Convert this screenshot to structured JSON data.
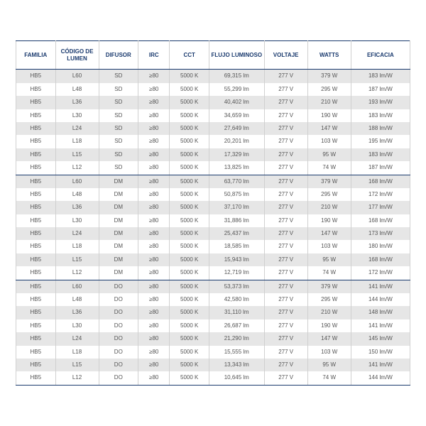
{
  "table": {
    "type": "table",
    "header_text_color": "#1a3a6e",
    "body_text_color": "#555555",
    "shade_row_color": "#e6e6e6",
    "border_color": "#d0d0d0",
    "strong_border_color": "#1a3a6e",
    "header_fontsize": 8,
    "body_fontsize": 8,
    "columns": [
      "FAMILIA",
      "CÓDIGO DE LUMEN",
      "DIFUSOR",
      "IRC",
      "CCT",
      "FLUJO LUMINOSO",
      "VOLTAJE",
      "WATTS",
      "EFICACIA"
    ],
    "rows": [
      {
        "shade": true,
        "group_end": false,
        "cells": [
          "HB5",
          "L60",
          "SD",
          "≥80",
          "5000 K",
          "69,315 lm",
          "277 V",
          "379 W",
          "183 lm/W"
        ]
      },
      {
        "shade": false,
        "group_end": false,
        "cells": [
          "HB5",
          "L48",
          "SD",
          "≥80",
          "5000 K",
          "55,299 lm",
          "277 V",
          "295 W",
          "187 lm/W"
        ]
      },
      {
        "shade": true,
        "group_end": false,
        "cells": [
          "HB5",
          "L36",
          "SD",
          "≥80",
          "5000 K",
          "40,402 lm",
          "277 V",
          "210 W",
          "193 lm/W"
        ]
      },
      {
        "shade": false,
        "group_end": false,
        "cells": [
          "HB5",
          "L30",
          "SD",
          "≥80",
          "5000 K",
          "34,659 lm",
          "277 V",
          "190 W",
          "183 lm/W"
        ]
      },
      {
        "shade": true,
        "group_end": false,
        "cells": [
          "HB5",
          "L24",
          "SD",
          "≥80",
          "5000 K",
          "27,649 lm",
          "277 V",
          "147 W",
          "188 lm/W"
        ]
      },
      {
        "shade": false,
        "group_end": false,
        "cells": [
          "HB5",
          "L18",
          "SD",
          "≥80",
          "5000 K",
          "20,201 lm",
          "277 V",
          "103 W",
          "195 lm/W"
        ]
      },
      {
        "shade": true,
        "group_end": false,
        "cells": [
          "HB5",
          "L15",
          "SD",
          "≥80",
          "5000 K",
          "17,329 lm",
          "277 V",
          "95 W",
          "183 lm/W"
        ]
      },
      {
        "shade": false,
        "group_end": true,
        "cells": [
          "HB5",
          "L12",
          "SD",
          "≥80",
          "5000 K",
          "13,825 lm",
          "277 V",
          "74 W",
          "187 lm/W"
        ]
      },
      {
        "shade": true,
        "group_end": false,
        "cells": [
          "HB5",
          "L60",
          "DM",
          "≥80",
          "5000 K",
          "63,770 lm",
          "277 V",
          "379 W",
          "168 lm/W"
        ]
      },
      {
        "shade": false,
        "group_end": false,
        "cells": [
          "HB5",
          "L48",
          "DM",
          "≥80",
          "5000 K",
          "50,875 lm",
          "277 V",
          "295 W",
          "172 lm/W"
        ]
      },
      {
        "shade": true,
        "group_end": false,
        "cells": [
          "HB5",
          "L36",
          "DM",
          "≥80",
          "5000 K",
          "37,170 lm",
          "277 V",
          "210 W",
          "177 lm/W"
        ]
      },
      {
        "shade": false,
        "group_end": false,
        "cells": [
          "HB5",
          "L30",
          "DM",
          "≥80",
          "5000 K",
          "31,886 lm",
          "277 V",
          "190 W",
          "168 lm/W"
        ]
      },
      {
        "shade": true,
        "group_end": false,
        "cells": [
          "HB5",
          "L24",
          "DM",
          "≥80",
          "5000 K",
          "25,437 lm",
          "277 V",
          "147 W",
          "173 lm/W"
        ]
      },
      {
        "shade": false,
        "group_end": false,
        "cells": [
          "HB5",
          "L18",
          "DM",
          "≥80",
          "5000 K",
          "18,585 lm",
          "277 V",
          "103 W",
          "180 lm/W"
        ]
      },
      {
        "shade": true,
        "group_end": false,
        "cells": [
          "HB5",
          "L15",
          "DM",
          "≥80",
          "5000 K",
          "15,943 lm",
          "277 V",
          "95 W",
          "168 lm/W"
        ]
      },
      {
        "shade": false,
        "group_end": true,
        "cells": [
          "HB5",
          "L12",
          "DM",
          "≥80",
          "5000 K",
          "12,719 lm",
          "277 V",
          "74 W",
          "172 lm/W"
        ]
      },
      {
        "shade": true,
        "group_end": false,
        "cells": [
          "HB5",
          "L60",
          "DO",
          "≥80",
          "5000 K",
          "53,373 lm",
          "277 V",
          "379 W",
          "141 lm/W"
        ]
      },
      {
        "shade": false,
        "group_end": false,
        "cells": [
          "HB5",
          "L48",
          "DO",
          "≥80",
          "5000 K",
          "42,580 lm",
          "277 V",
          "295 W",
          "144 lm/W"
        ]
      },
      {
        "shade": true,
        "group_end": false,
        "cells": [
          "HB5",
          "L36",
          "DO",
          "≥80",
          "5000 K",
          "31,110 lm",
          "277 V",
          "210 W",
          "148 lm/W"
        ]
      },
      {
        "shade": false,
        "group_end": false,
        "cells": [
          "HB5",
          "L30",
          "DO",
          "≥80",
          "5000 K",
          "26,687 lm",
          "277 V",
          "190 W",
          "141 lm/W"
        ]
      },
      {
        "shade": true,
        "group_end": false,
        "cells": [
          "HB5",
          "L24",
          "DO",
          "≥80",
          "5000 K",
          "21,290 lm",
          "277 V",
          "147 W",
          "145 lm/W"
        ]
      },
      {
        "shade": false,
        "group_end": false,
        "cells": [
          "HB5",
          "L18",
          "DO",
          "≥80",
          "5000 K",
          "15,555 lm",
          "277 V",
          "103 W",
          "150 lm/W"
        ]
      },
      {
        "shade": true,
        "group_end": false,
        "cells": [
          "HB5",
          "L15",
          "DO",
          "≥80",
          "5000 K",
          "13,343 lm",
          "277 V",
          "95 W",
          "141 lm/W"
        ]
      },
      {
        "shade": false,
        "group_end": false,
        "cells": [
          "HB5",
          "L12",
          "DO",
          "≥80",
          "5000 K",
          "10,645 lm",
          "277 V",
          "74 W",
          "144 lm/W"
        ]
      }
    ]
  }
}
